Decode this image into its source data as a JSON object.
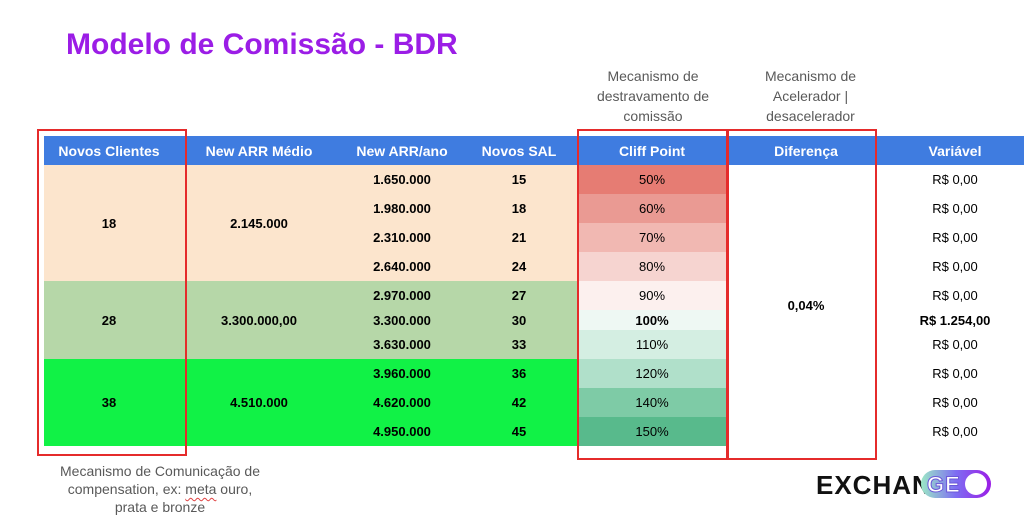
{
  "title": "Modelo de Comissão - BDR",
  "notes": {
    "unlock": [
      "Mecanismo de",
      "destravamento de",
      "comissão"
    ],
    "accelerator": [
      "Mecanismo de",
      "Acelerador |",
      "desacelerador"
    ],
    "communication": "Mecanismo de Comunicação de compensation, ex: meta ouro, prata e bronze",
    "comm_line1": "Mecanismo de Comunicação de",
    "comm_line2_pre": "compensation, ex: ",
    "comm_line2_squiggle": "meta",
    "comm_line2_post": " ouro,",
    "comm_line3": "prata e bronze"
  },
  "table": {
    "headers": [
      "Novos Clientes",
      "New ARR Médio",
      "New ARR/ano",
      "Novos SAL",
      "Cliff Point",
      "Diferença",
      "Variável"
    ],
    "groups": [
      {
        "novos_clientes": "18",
        "new_arr_medio": "2.145.000"
      },
      {
        "novos_clientes": "28",
        "new_arr_medio": "3.300.000,00"
      },
      {
        "novos_clientes": "38",
        "new_arr_medio": "4.510.000"
      }
    ],
    "rows": [
      {
        "arr": "1.650.000",
        "sal": "15",
        "cliff": "50%",
        "cliff_color": "#e67c73",
        "variavel": "R$ 0,00"
      },
      {
        "arr": "1.980.000",
        "sal": "18",
        "cliff": "60%",
        "cliff_color": "#ea9a93",
        "variavel": "R$ 0,00"
      },
      {
        "arr": "2.310.000",
        "sal": "21",
        "cliff": "70%",
        "cliff_color": "#f1b8b2",
        "variavel": "R$ 0,00"
      },
      {
        "arr": "2.640.000",
        "sal": "24",
        "cliff": "80%",
        "cliff_color": "#f6d4d0",
        "variavel": "R$ 0,00"
      },
      {
        "arr": "2.970.000",
        "sal": "27",
        "cliff": "90%",
        "cliff_color": "#fcf0ee",
        "variavel": "R$ 0,00"
      },
      {
        "arr": "3.300.000",
        "sal": "30",
        "cliff": "100%",
        "cliff_color": "#eef8f3",
        "variavel": "R$ 1.254,00"
      },
      {
        "arr": "3.630.000",
        "sal": "33",
        "cliff": "110%",
        "cliff_color": "#d4eee2",
        "variavel": "R$ 0,00"
      },
      {
        "arr": "3.960.000",
        "sal": "36",
        "cliff": "120%",
        "cliff_color": "#b0e0ca",
        "variavel": "R$ 0,00"
      },
      {
        "arr": "4.620.000",
        "sal": "42",
        "cliff": "140%",
        "cliff_color": "#7ecba6",
        "variavel": "R$ 0,00"
      },
      {
        "arr": "4.950.000",
        "sal": "45",
        "cliff": "150%",
        "cliff_color": "#58ba8c",
        "variavel": "R$ 0,00"
      }
    ],
    "diferenca": "0,04%"
  },
  "logo": {
    "text_main": "EXCHAN",
    "text_toggle": "GE"
  },
  "colors": {
    "title": "#9b1de6",
    "header": "#3f7ce0",
    "highlight_box": "#e52b2b"
  }
}
